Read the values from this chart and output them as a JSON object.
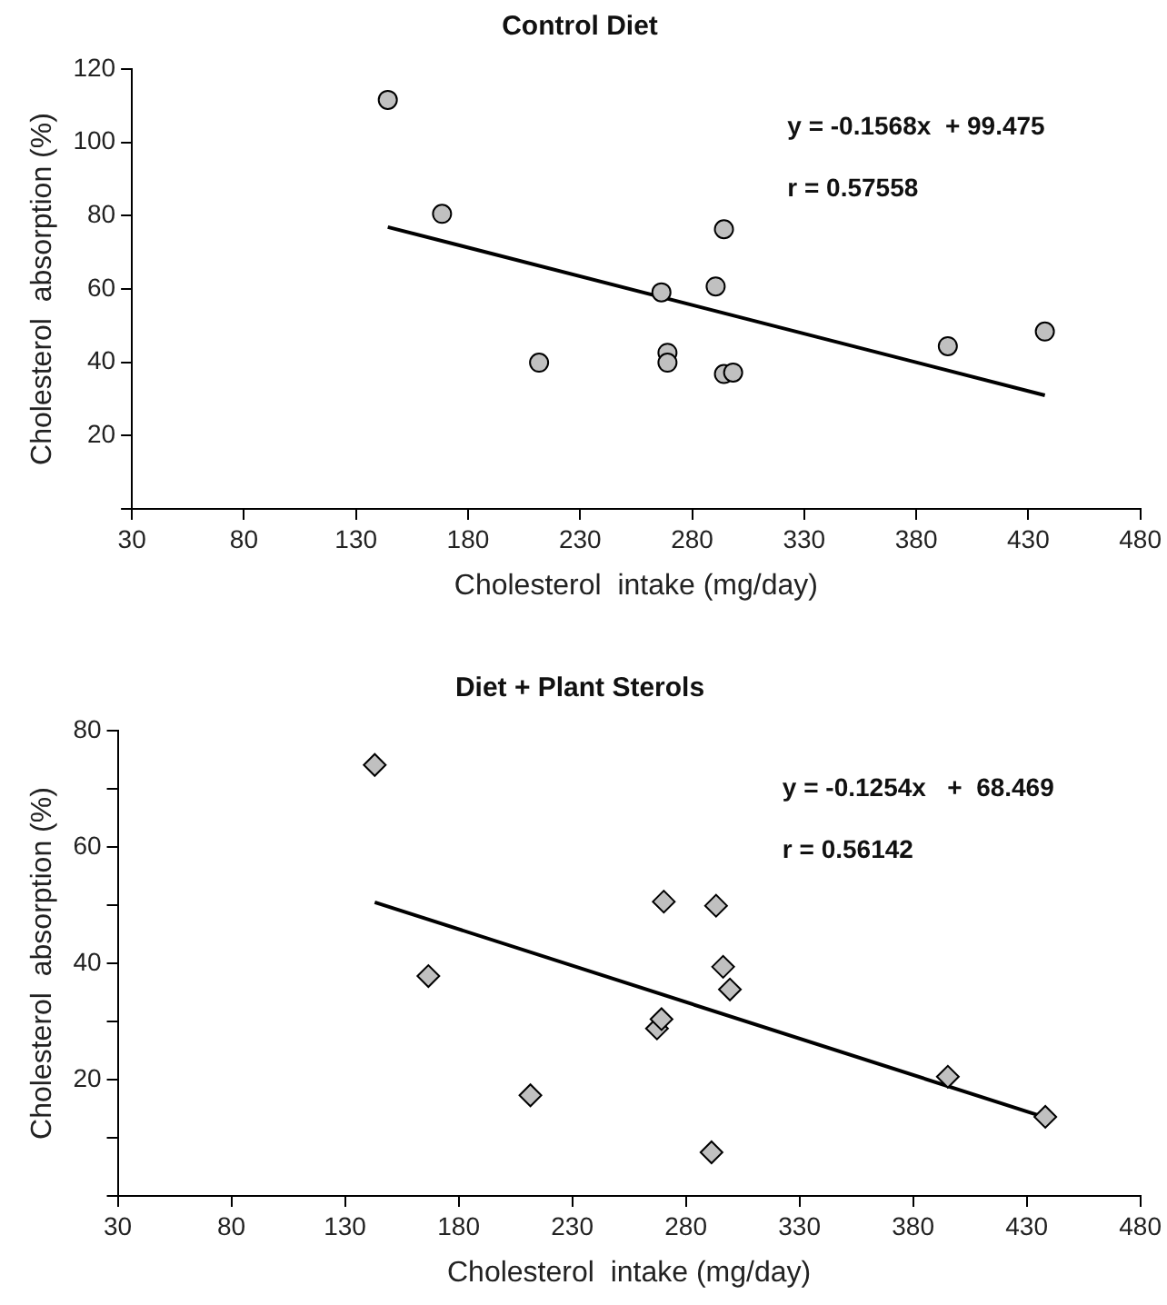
{
  "chart_data": [
    {
      "type": "scatter",
      "title": "Control Diet",
      "xlabel": "Cholesterol  intake (mg/day)",
      "ylabel": "Cholesterol  absorption (%)",
      "xlim": [
        30,
        480
      ],
      "xticks": [
        30,
        80,
        130,
        180,
        230,
        280,
        330,
        380,
        430,
        480
      ],
      "ylim": [
        0,
        120
      ],
      "yticks": [
        {
          "value": 0,
          "label": null
        },
        20,
        40,
        60,
        80,
        100,
        120
      ],
      "grid": false,
      "legend": false,
      "marker": "circle",
      "annotations": [
        "y = -0.1568x  + 99.475",
        "r = 0.57558"
      ],
      "series": [
        {
          "type": "scatter",
          "color": "#c0c0c0",
          "x": [
            144.2,
            168.4,
            211.7,
            266.3,
            269,
            269,
            290.5,
            294.2,
            294.2,
            298.3,
            394.1,
            437.4
          ],
          "values": [
            111.6,
            80.5,
            39.9,
            59.1,
            42.6,
            39.9,
            60.7,
            76.3,
            36.8,
            37.2,
            44.4,
            48.4
          ]
        },
        {
          "type": "line",
          "color": "#000000",
          "marker": "none",
          "x": [
            144.2,
            437.4
          ],
          "values": [
            76.9,
            31.0
          ]
        }
      ]
    },
    {
      "type": "scatter",
      "title": "Diet + Plant Sterols",
      "xlabel": "Cholesterol  intake (mg/day)",
      "ylabel": "Cholesterol  absorption (%)",
      "xlim": [
        30,
        480
      ],
      "xticks": [
        30,
        80,
        130,
        180,
        230,
        280,
        330,
        380,
        430,
        480
      ],
      "ylim": [
        0,
        80
      ],
      "yticks": [
        {
          "value": 0,
          "label": null
        },
        {
          "value": 10,
          "label": null
        },
        20,
        {
          "value": 30,
          "label": null
        },
        40,
        {
          "value": 50,
          "label": null
        },
        60,
        {
          "value": 70,
          "label": null
        },
        80
      ],
      "grid": false,
      "legend": false,
      "marker": "diamond",
      "annotations": [
        "y = -0.1254x   +  68.469",
        "r = 0.56142"
      ],
      "series": [
        {
          "type": "scatter",
          "color": "#c0c0c0",
          "x": [
            143.1,
            166.7,
            211.6,
            267.3,
            269.3,
            270.3,
            293.3,
            291.3,
            296.4,
            299.4,
            395.3,
            438.2
          ],
          "values": [
            74.1,
            37.8,
            17.3,
            28.8,
            30.4,
            50.6,
            49.9,
            7.5,
            39.4,
            35.5,
            20.5,
            13.6
          ]
        },
        {
          "type": "line",
          "color": "#000000",
          "marker": "none",
          "x": [
            143.1,
            438.2
          ],
          "values": [
            50.5,
            13.5
          ]
        }
      ]
    }
  ]
}
